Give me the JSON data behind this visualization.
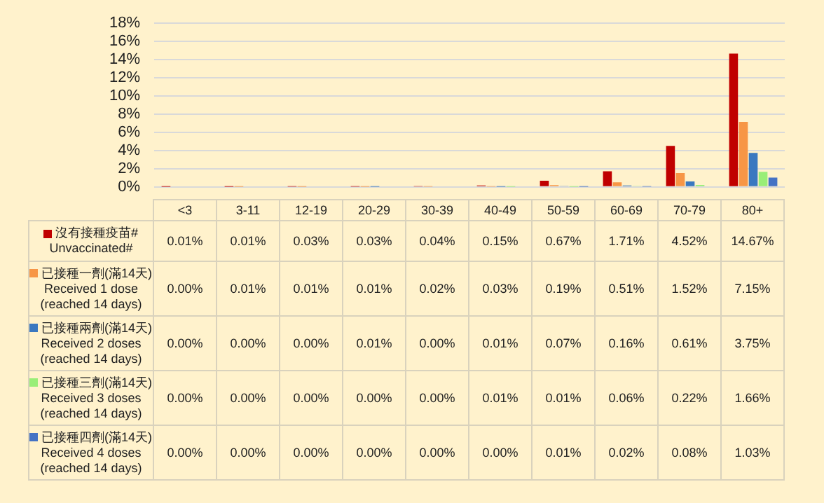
{
  "chart_data": {
    "type": "bar",
    "categories": [
      "<3",
      "3-11",
      "12-19",
      "20-29",
      "30-39",
      "40-49",
      "50-59",
      "60-69",
      "70-79",
      "80+"
    ],
    "ylim": [
      0,
      18
    ],
    "yticks": [
      {
        "value": 0,
        "label": "0%"
      },
      {
        "value": 2,
        "label": "2%"
      },
      {
        "value": 4,
        "label": "4%"
      },
      {
        "value": 6,
        "label": "6%"
      },
      {
        "value": 8,
        "label": "8%"
      },
      {
        "value": 10,
        "label": "10%"
      },
      {
        "value": 12,
        "label": "12%"
      },
      {
        "value": 14,
        "label": "14%"
      },
      {
        "value": 16,
        "label": "16%"
      },
      {
        "value": 18,
        "label": "18%"
      }
    ],
    "grid": "y",
    "legend": "left",
    "series": [
      {
        "name": "沒有接種疫苗#\nUnvaccinated#",
        "color": "#c00000",
        "values": [
          0.01,
          0.01,
          0.03,
          0.03,
          0.04,
          0.15,
          0.67,
          1.71,
          4.52,
          14.67
        ],
        "value_labels": [
          "0.01%",
          "0.01%",
          "0.03%",
          "0.03%",
          "0.04%",
          "0.15%",
          "0.67%",
          "1.71%",
          "4.52%",
          "14.67%"
        ]
      },
      {
        "name": "已接種一劑(滿14天)\nReceived 1 dose\n(reached 14 days)",
        "color": "#f79646",
        "values": [
          0,
          0.01,
          0.01,
          0.01,
          0.02,
          0.03,
          0.19,
          0.51,
          1.52,
          7.15
        ],
        "value_labels": [
          "0.00%",
          "0.01%",
          "0.01%",
          "0.01%",
          "0.02%",
          "0.03%",
          "0.19%",
          "0.51%",
          "1.52%",
          "7.15%"
        ]
      },
      {
        "name": "已接種兩劑(滿14天)\nReceived 2 doses\n(reached 14 days)",
        "color": "#3a78c0",
        "values": [
          0,
          0,
          0,
          0.01,
          0,
          0.01,
          0.07,
          0.16,
          0.61,
          3.75
        ],
        "value_labels": [
          "0.00%",
          "0.00%",
          "0.00%",
          "0.01%",
          "0.00%",
          "0.01%",
          "0.07%",
          "0.16%",
          "0.61%",
          "3.75%"
        ]
      },
      {
        "name": "已接種三劑(滿14天)\nReceived 3 doses\n(reached 14 days)",
        "color": "#99ee77",
        "values": [
          0,
          0,
          0,
          0,
          0,
          0.01,
          0.01,
          0.06,
          0.22,
          1.66
        ],
        "value_labels": [
          "0.00%",
          "0.00%",
          "0.00%",
          "0.00%",
          "0.00%",
          "0.01%",
          "0.01%",
          "0.06%",
          "0.22%",
          "1.66%"
        ]
      },
      {
        "name": "已接種四劑(滿14天)\nReceived 4 doses\n(reached 14 days)",
        "color": "#4472c4",
        "values": [
          0,
          0,
          0,
          0,
          0,
          0,
          0.01,
          0.02,
          0.08,
          1.03
        ],
        "value_labels": [
          "0.00%",
          "0.00%",
          "0.00%",
          "0.00%",
          "0.00%",
          "0.00%",
          "0.01%",
          "0.02%",
          "0.08%",
          "1.03%"
        ]
      }
    ]
  }
}
